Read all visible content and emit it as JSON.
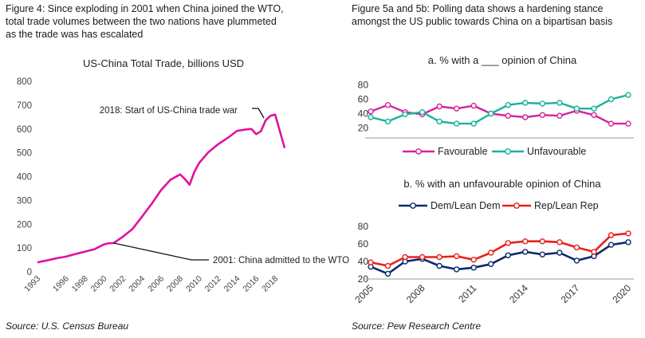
{
  "left_panel": {
    "caption_lines": [
      "Figure 4: Since exploding in 2001 when China joined the WTO,",
      "total trade volumes between the two nations have plummeted",
      "as the trade was has escalated"
    ],
    "source": "Source: U.S. Census Bureau"
  },
  "right_panel": {
    "caption_lines": [
      "Figure 5a and 5b: Polling data shows a hardening stance",
      "amongst the US public towards China on a bipartisan basis"
    ],
    "source": "Source: Pew Research Centre"
  },
  "chart_data": [
    {
      "type": "line",
      "title": "US-China Total Trade, billions USD",
      "xlabel": "",
      "ylabel": "",
      "ylim": [
        0,
        800
      ],
      "yticks": [
        0,
        100,
        200,
        300,
        400,
        500,
        600,
        700,
        800
      ],
      "xlim": [
        1993,
        2019.5
      ],
      "xticks": [
        "1993",
        "1996",
        "1998",
        "2000",
        "2002",
        "2004",
        "2006",
        "2008",
        "2010",
        "2012",
        "2014",
        "2016",
        "2018"
      ],
      "grid": false,
      "color": "#e0119e",
      "series": [
        {
          "x": [
            1993,
            1994,
            1995,
            1996,
            1997,
            1998,
            1999,
            2000,
            2000.5,
            2001,
            2002,
            2003,
            2004,
            2005,
            2006,
            2007,
            2008,
            2008.5,
            2009,
            2009.5,
            2010,
            2011,
            2012,
            2013,
            2014,
            2015,
            2015.5,
            2016,
            2016.5,
            2017,
            2017.5,
            2018,
            2018.5,
            2019
          ],
          "values": [
            40,
            48,
            57,
            64,
            75,
            85,
            95,
            115,
            120,
            121,
            148,
            180,
            232,
            285,
            343,
            387,
            409,
            390,
            366,
            420,
            457,
            503,
            536,
            562,
            592,
            598,
            600,
            578,
            590,
            636,
            655,
            660,
            590,
            520
          ]
        }
      ],
      "annotations": [
        {
          "text": "2018: Start of US-China trade war",
          "x": 2018,
          "y": 660
        },
        {
          "text": "2001: China admitted to the WTO",
          "x": 2001,
          "y": 121
        }
      ]
    },
    {
      "type": "line",
      "title": "a. % with a ___ opinion of China",
      "ylim": [
        15,
        85
      ],
      "yticks": [
        20,
        40,
        60,
        80
      ],
      "xlim": [
        2005,
        2020
      ],
      "grid": false,
      "legend": "bottom",
      "series": [
        {
          "name": "Favourable",
          "color": "#d4239f",
          "x": [
            2005,
            2006,
            2007,
            2008,
            2009,
            2010,
            2011,
            2012,
            2013,
            2014,
            2015,
            2016,
            2017,
            2018,
            2019,
            2020
          ],
          "values": [
            43,
            52,
            42,
            39,
            50,
            47,
            51,
            40,
            37,
            35,
            38,
            37,
            44,
            38,
            26,
            26
          ]
        },
        {
          "name": "Unfavourable",
          "color": "#19b39a",
          "x": [
            2005,
            2006,
            2007,
            2008,
            2009,
            2010,
            2011,
            2012,
            2013,
            2014,
            2015,
            2016,
            2017,
            2018,
            2019,
            2020
          ],
          "values": [
            35,
            29,
            39,
            42,
            29,
            26,
            26,
            40,
            52,
            55,
            54,
            55,
            47,
            47,
            60,
            66
          ]
        }
      ]
    },
    {
      "type": "line",
      "title": "b. % with an unfavourable opinion of China",
      "ylim": [
        20,
        80
      ],
      "yticks": [
        20,
        40,
        60,
        80
      ],
      "xlim": [
        2005,
        2020
      ],
      "xticks": [
        "2005",
        "2008",
        "2011",
        "2014",
        "2017",
        "2020"
      ],
      "grid": false,
      "legend": "top",
      "series": [
        {
          "name": "Dem/Lean Dem",
          "color": "#0b2a6f",
          "x": [
            2005,
            2006,
            2007,
            2008,
            2009,
            2010,
            2011,
            2012,
            2013,
            2014,
            2015,
            2016,
            2017,
            2018,
            2019,
            2020
          ],
          "values": [
            34,
            26,
            40,
            43,
            35,
            31,
            33,
            37,
            47,
            51,
            48,
            50,
            41,
            46,
            59,
            62
          ]
        },
        {
          "name": "Rep/Lean Rep",
          "color": "#e8201c",
          "x": [
            2005,
            2006,
            2007,
            2008,
            2009,
            2010,
            2011,
            2012,
            2013,
            2014,
            2015,
            2016,
            2017,
            2018,
            2019,
            2020
          ],
          "values": [
            39,
            35,
            45,
            45,
            45,
            46,
            42,
            50,
            61,
            63,
            63,
            62,
            56,
            51,
            70,
            72
          ]
        }
      ]
    }
  ]
}
